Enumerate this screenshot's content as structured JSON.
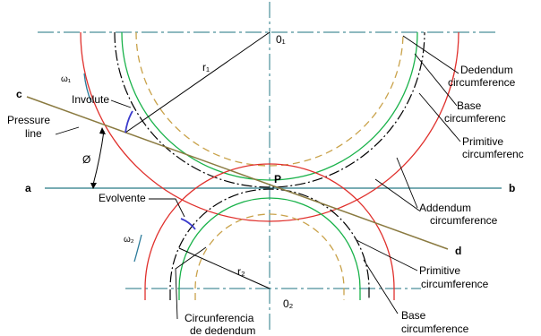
{
  "labels": {
    "o1": "0₁",
    "o2": "0₂",
    "r1": "r₁",
    "r2": "r₂",
    "omega1": "ω₁",
    "omega2": "ω₂",
    "c": "c",
    "a": "a",
    "b": "b",
    "d": "d",
    "p": "P",
    "phi": "Ø",
    "involute": "Involute",
    "evolvente": "Evolvente",
    "pressure_line_1": "Pressure",
    "pressure_line_2": "line",
    "dedendum_1": "Dedendum",
    "dedendum_2": "circumference",
    "base_top_1": "Base",
    "base_top_2": "circumferenc",
    "primitive_top_1": "Primitive",
    "primitive_top_2": "circumferenc",
    "addendum_1": "Addendum",
    "addendum_2": "circumference",
    "primitive_bot_1": "Primitive",
    "primitive_bot_2": "circumference",
    "base_bot_1": "Base",
    "base_bot_2": "circumference",
    "ded_bot_1": "Circunferencia",
    "ded_bot_2": "de dedendum"
  },
  "colors": {
    "addendum": "#e0302c",
    "base": "#19b24a",
    "dedendum": "#c9a24a",
    "primitive": "#000000",
    "center_line": "#4a8f9a",
    "pressure_line": "#8a7a40",
    "involute": "#3a3acc",
    "omega": "#2a7a9a"
  }
}
